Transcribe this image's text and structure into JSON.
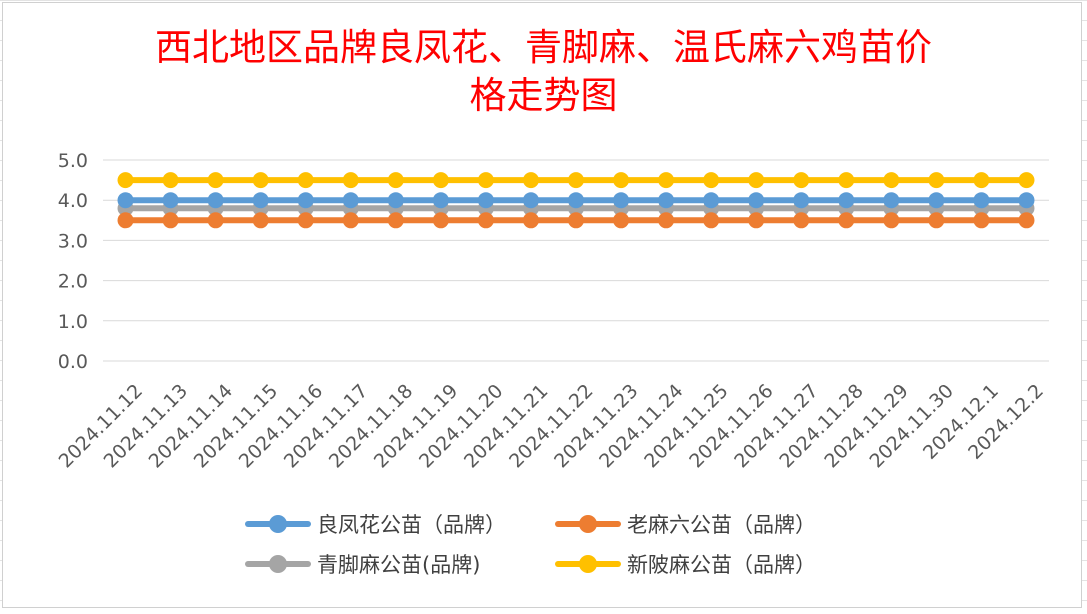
{
  "chart_data": {
    "type": "line",
    "title": "西北地区品牌良凤花、青脚麻、温氏麻六鸡苗价格走势图",
    "title_lines": [
      "西北地区品牌良凤花、青脚麻、温氏麻六鸡苗价",
      "格走势图"
    ],
    "xlabel": "",
    "ylabel": "",
    "categories": [
      "2024.11.12",
      "2024.11.13",
      "2024.11.14",
      "2024.11.15",
      "2024.11.16",
      "2024.11.17",
      "2024.11.18",
      "2024.11.19",
      "2024.11.20",
      "2024.11.21",
      "2024.11.22",
      "2024.11.23",
      "2024.11.24",
      "2024.11.25",
      "2024.11.26",
      "2024.11.27",
      "2024.11.28",
      "2024.11.29",
      "2024.11.30",
      "2024.12.1",
      "2024.12.2"
    ],
    "ylim": [
      0,
      5
    ],
    "yticks": [
      "0.0",
      "1.0",
      "2.0",
      "3.0",
      "4.0",
      "5.0"
    ],
    "grid": true,
    "legend_position": "bottom",
    "series": [
      {
        "name": "良凤花公苗（品牌）",
        "color": "#5b9bd5",
        "values": [
          4.0,
          4.0,
          4.0,
          4.0,
          4.0,
          4.0,
          4.0,
          4.0,
          4.0,
          4.0,
          4.0,
          4.0,
          4.0,
          4.0,
          4.0,
          4.0,
          4.0,
          4.0,
          4.0,
          4.0,
          4.0
        ]
      },
      {
        "name": "老麻六公苗（品牌）",
        "color": "#ed7d31",
        "values": [
          3.5,
          3.5,
          3.5,
          3.5,
          3.5,
          3.5,
          3.5,
          3.5,
          3.5,
          3.5,
          3.5,
          3.5,
          3.5,
          3.5,
          3.5,
          3.5,
          3.5,
          3.5,
          3.5,
          3.5,
          3.5
        ]
      },
      {
        "name": "青脚麻公苗(品牌)",
        "color": "#a5a5a5",
        "values": [
          3.8,
          3.8,
          3.8,
          3.8,
          3.8,
          3.8,
          3.8,
          3.8,
          3.8,
          3.8,
          3.8,
          3.8,
          3.8,
          3.8,
          3.8,
          3.8,
          3.8,
          3.8,
          3.8,
          3.8,
          3.8
        ]
      },
      {
        "name": "新陂麻公苗（品牌）",
        "color": "#ffc000",
        "values": [
          4.5,
          4.5,
          4.5,
          4.5,
          4.5,
          4.5,
          4.5,
          4.5,
          4.5,
          4.5,
          4.5,
          4.5,
          4.5,
          4.5,
          4.5,
          4.5,
          4.5,
          4.5,
          4.5,
          4.5,
          4.5
        ]
      }
    ]
  }
}
